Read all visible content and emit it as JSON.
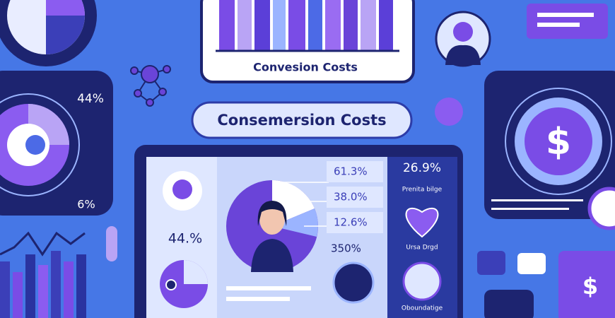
{
  "header": {
    "top_card_title": "Convesion Costs",
    "banner_title": "Consemersion Costs"
  },
  "left_panel": {
    "top_stat": "44%",
    "bottom_stat": "6%"
  },
  "tablet": {
    "left_stat": "44.%",
    "stats": [
      "61.3%",
      "38.0%",
      "12.6%",
      "350%"
    ],
    "side_stat": "26.9%",
    "side_label": "Prenita bilge",
    "side_caption": "Ursa Drgd",
    "side_footer": "Oboundatige"
  }
}
